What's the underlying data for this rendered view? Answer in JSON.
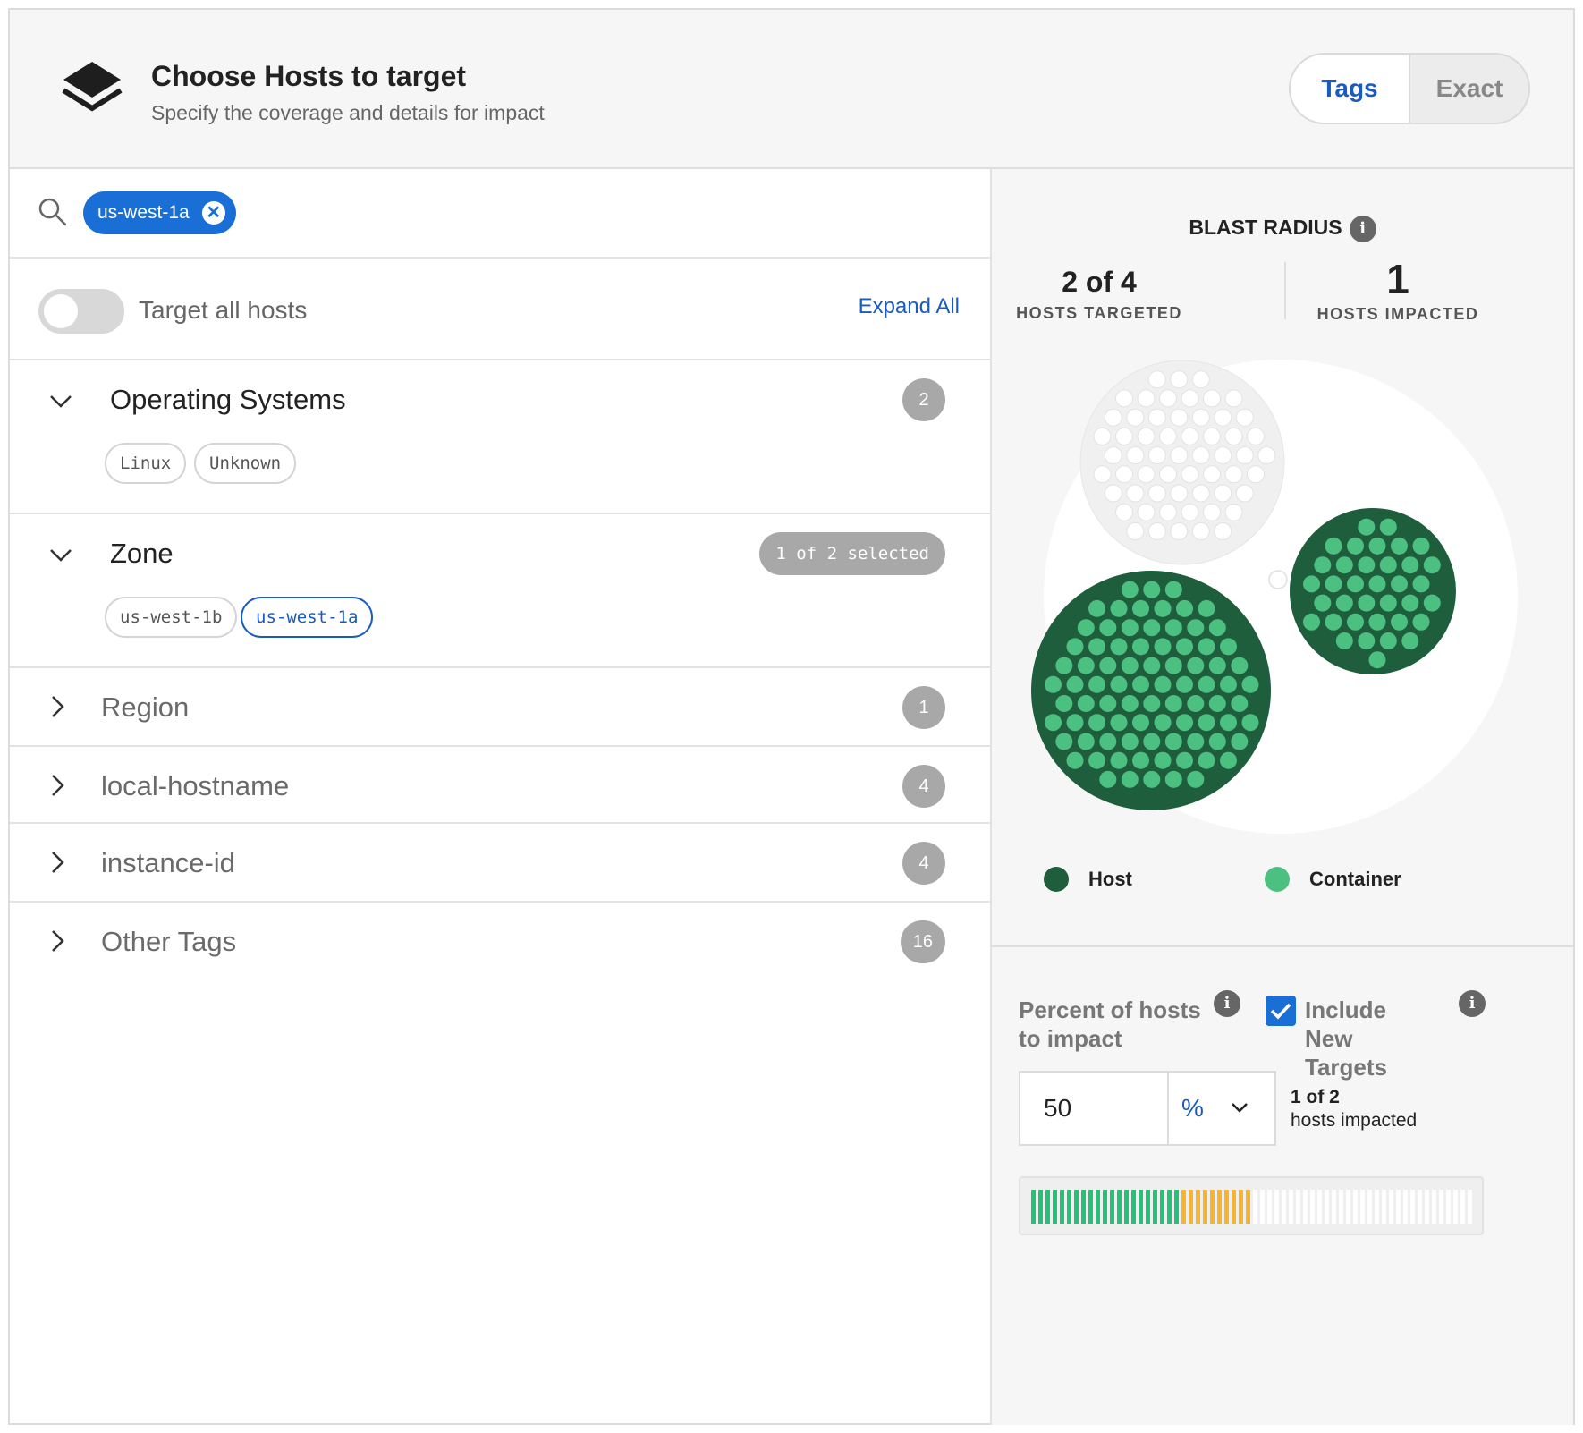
{
  "header": {
    "title": "Choose Hosts to target",
    "subtitle": "Specify the coverage and details for impact",
    "modes": [
      "Tags",
      "Exact"
    ],
    "active_mode": "Tags"
  },
  "search": {
    "chip_label": "us-west-1a"
  },
  "targeting": {
    "toggle_label": "Target all hosts",
    "toggle_on": false,
    "expand_all_label": "Expand All"
  },
  "sections": [
    {
      "title": "Operating Systems",
      "expanded": true,
      "badge": "2",
      "tags": [
        "Linux",
        "Unknown"
      ],
      "selected_tags": []
    },
    {
      "title": "Zone",
      "expanded": true,
      "badge": "1 of 2 selected",
      "tags": [
        "us-west-1b",
        "us-west-1a"
      ],
      "selected_tags": [
        "us-west-1a"
      ]
    },
    {
      "title": "Region",
      "expanded": false,
      "badge": "1"
    },
    {
      "title": "local-hostname",
      "expanded": false,
      "badge": "4"
    },
    {
      "title": "instance-id",
      "expanded": false,
      "badge": "4"
    },
    {
      "title": "Other Tags",
      "expanded": false,
      "badge": "16"
    }
  ],
  "blast_radius": {
    "title": "BLAST RADIUS",
    "targeted_value": "2 of 4",
    "targeted_label": "HOSTS TARGETED",
    "impacted_value": "1",
    "impacted_label": "HOSTS IMPACTED",
    "legend": [
      {
        "label": "Host",
        "color": "#1f5e3d"
      },
      {
        "label": "Container",
        "color": "#4cc080"
      }
    ],
    "colors": {
      "host": "#1f5e3d",
      "container": "#4cc080",
      "inactive": "#f0f0f0"
    }
  },
  "impact": {
    "percent_label": "Percent of hosts to impact",
    "include_new_label": "Include New Targets",
    "include_new_checked": true,
    "percent_value": "50",
    "unit": "%",
    "impacted_count": "1 of 2",
    "impacted_label": "hosts impacted",
    "bar": {
      "green_fraction": 0.34,
      "orange_fraction": 0.16,
      "colors": {
        "green": "#25c17a",
        "orange": "#f5b52e",
        "empty": "#ffffff"
      }
    }
  }
}
